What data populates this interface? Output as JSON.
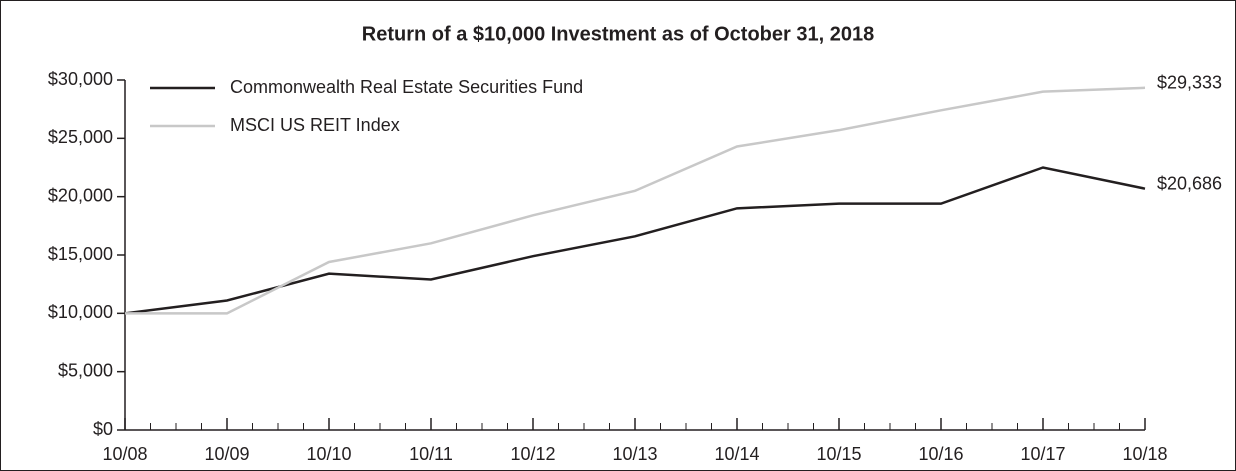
{
  "chart_data": {
    "type": "line",
    "title": "Return of a $10,000 Investment as of October 31, 2018",
    "categories": [
      "10/08",
      "10/09",
      "10/10",
      "10/11",
      "10/12",
      "10/13",
      "10/14",
      "10/15",
      "10/16",
      "10/17",
      "10/18"
    ],
    "series": [
      {
        "name": "Commonwealth Real Estate Securities Fund",
        "color": "#231f20",
        "values": [
          10000,
          11100,
          13400,
          12900,
          14900,
          16600,
          19000,
          19400,
          19400,
          22500,
          20686
        ],
        "value_labels": [
          null,
          null,
          null,
          null,
          null,
          null,
          null,
          null,
          null,
          null,
          "$20,686"
        ]
      },
      {
        "name": "MSCI US REIT Index",
        "color": "#c8c8c8",
        "values": [
          10000,
          10000,
          14400,
          16000,
          18400,
          20500,
          24300,
          25700,
          27400,
          29000,
          29333
        ],
        "value_labels": [
          null,
          null,
          null,
          null,
          null,
          null,
          null,
          null,
          null,
          null,
          "$29,333"
        ]
      }
    ],
    "ylim": [
      0,
      30000
    ],
    "yticks": [
      {
        "value": 0,
        "label": "$0"
      },
      {
        "value": 5000,
        "label": "$5,000"
      },
      {
        "value": 10000,
        "label": "$10,000"
      },
      {
        "value": 15000,
        "label": "$15,000"
      },
      {
        "value": 20000,
        "label": "$20,000"
      },
      {
        "value": 25000,
        "label": "$25,000"
      },
      {
        "value": 30000,
        "label": "$30,000"
      }
    ],
    "grid": false,
    "legend": "upper left"
  }
}
